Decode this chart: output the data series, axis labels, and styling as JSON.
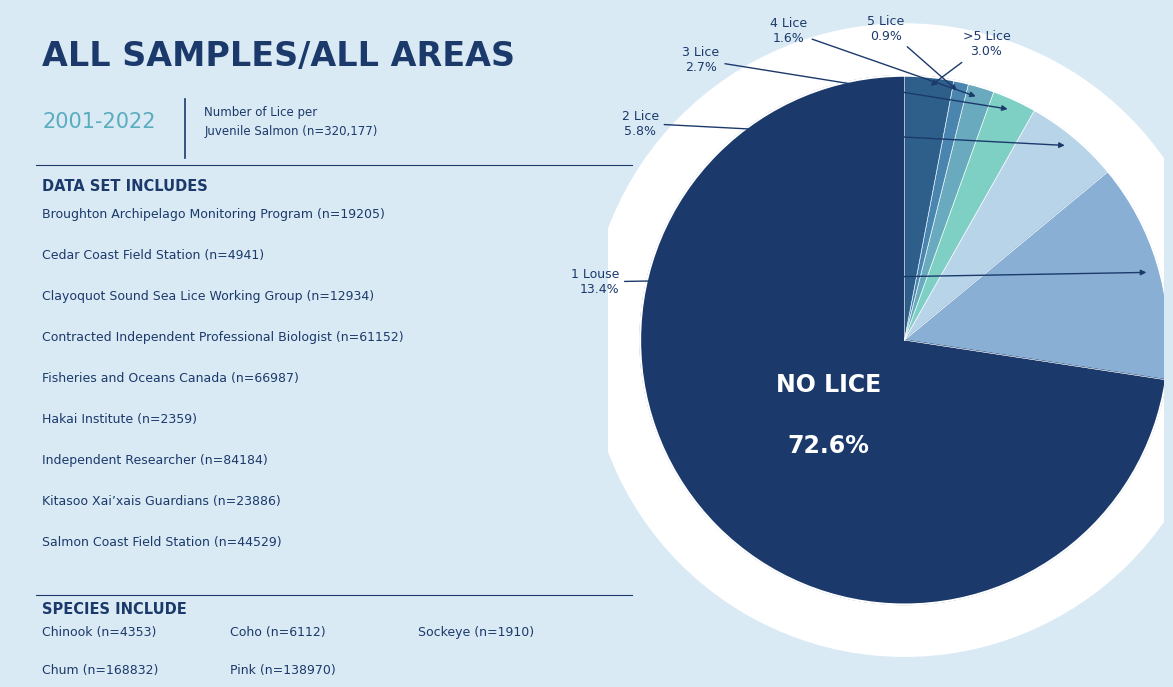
{
  "title": "ALL SAMPLES/ALL AREAS",
  "subtitle_year": "2001-2022",
  "subtitle_desc": "Number of Lice per\nJuvenile Salmon (n=320,177)",
  "background_color": "#daeaf4",
  "pie_ordered": [
    {
      "label": ">5 Lice",
      "pct": 3.0,
      "color": "#2e5f8a"
    },
    {
      "label": "5 Lice",
      "pct": 0.9,
      "color": "#4a85b0"
    },
    {
      "label": "4 Lice",
      "pct": 1.6,
      "color": "#6aaabe"
    },
    {
      "label": "3 Lice",
      "pct": 2.7,
      "color": "#7ecfc4"
    },
    {
      "label": "2 Lice",
      "pct": 5.8,
      "color": "#b8d4e8"
    },
    {
      "label": "1 Louse",
      "pct": 13.4,
      "color": "#8aafd4"
    },
    {
      "label": "No Lice",
      "pct": 72.6,
      "color": "#1b3a6b"
    }
  ],
  "data_set_header": "DATA SET INCLUDES",
  "data_set_items": [
    "Broughton Archipelago Monitoring Program (n=19205)",
    "Cedar Coast Field Station (n=4941)",
    "Clayoquot Sound Sea Lice Working Group (n=12934)",
    "Contracted Independent Professional Biologist (n=61152)",
    "Fisheries and Oceans Canada (n=66987)",
    "Hakai Institute (n=2359)",
    "Independent Researcher (n=84184)",
    "Kitasoo Xai’xais Guardians (n=23886)",
    "Salmon Coast Field Station (n=44529)"
  ],
  "species_header": "SPECIES INCLUDE",
  "species_col1": [
    "Chinook (n=4353)",
    "Chum (n=168832)"
  ],
  "species_col2": [
    "Coho (n=6112)",
    "Pink (n=138970)"
  ],
  "species_col3": [
    "Sockeye (n=1910)",
    ""
  ],
  "title_color": "#1b3a6b",
  "year_color": "#5aacbf",
  "header_color": "#1b3a6b",
  "text_color": "#1b3a6b"
}
